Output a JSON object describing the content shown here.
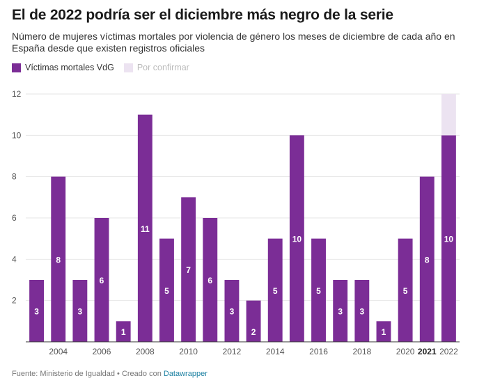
{
  "title": "El de 2022 podría ser el diciembre más negro de la serie",
  "subtitle": "Número de mujeres víctimas mortales por violencia de género los meses de diciembre de cada año en España desde que existen registros oficiales",
  "legend": {
    "confirmed": "Víctimas mortales VdG",
    "pending": "Por confirmar"
  },
  "colors": {
    "confirmed": "#7b2d96",
    "pending": "#ece3f1",
    "grid": "#e6e6e6",
    "axis": "#333333"
  },
  "footer": {
    "source": "Fuente: Ministerio de Igualdad • Creado con ",
    "tool": "Datawrapper"
  },
  "chart_data": {
    "type": "bar",
    "stacked": true,
    "categories": [
      "2003",
      "2004",
      "2005",
      "2006",
      "2007",
      "2008",
      "2009",
      "2010",
      "2011",
      "2012",
      "2013",
      "2014",
      "2015",
      "2016",
      "2017",
      "2018",
      "2019",
      "2020",
      "2021",
      "2022"
    ],
    "series": [
      {
        "name": "Víctimas mortales VdG",
        "values": [
          3,
          8,
          3,
          6,
          1,
          11,
          5,
          7,
          6,
          3,
          2,
          5,
          10,
          5,
          3,
          3,
          1,
          5,
          8,
          10
        ]
      },
      {
        "name": "Por confirmar",
        "values": [
          0,
          0,
          0,
          0,
          0,
          0,
          0,
          0,
          0,
          0,
          0,
          0,
          0,
          0,
          0,
          0,
          0,
          0,
          0,
          2
        ]
      }
    ],
    "x_tick_labels": [
      "2004",
      "2006",
      "2008",
      "2010",
      "2012",
      "2014",
      "2016",
      "2018",
      "2020",
      "2021",
      "2022"
    ],
    "bold_tick_labels": [
      "2021"
    ],
    "y_ticks": [
      2,
      4,
      6,
      8,
      10,
      12
    ],
    "ylim": [
      0,
      12
    ],
    "grid": true,
    "legend_position": "top-left",
    "data_labels": true
  }
}
